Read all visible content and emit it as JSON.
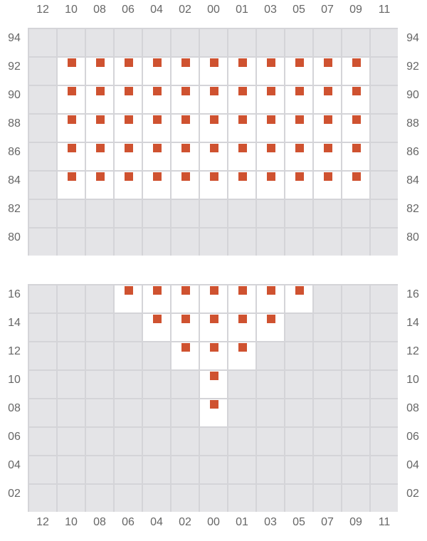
{
  "columns": [
    "12",
    "10",
    "08",
    "06",
    "04",
    "02",
    "00",
    "01",
    "03",
    "05",
    "07",
    "09",
    "11"
  ],
  "colors": {
    "cell": "#e4e4e7",
    "active": "#ffffff",
    "mark": "#cf5230",
    "grid": "#d4d4d8"
  },
  "sections": [
    {
      "rows": [
        "94",
        "92",
        "90",
        "88",
        "86",
        "84",
        "82",
        "80"
      ],
      "marked": {
        "92": [
          "10",
          "08",
          "06",
          "04",
          "02",
          "00",
          "01",
          "03",
          "05",
          "07",
          "09"
        ],
        "90": [
          "10",
          "08",
          "06",
          "04",
          "02",
          "00",
          "01",
          "03",
          "05",
          "07",
          "09"
        ],
        "88": [
          "10",
          "08",
          "06",
          "04",
          "02",
          "00",
          "01",
          "03",
          "05",
          "07",
          "09"
        ],
        "86": [
          "10",
          "08",
          "06",
          "04",
          "02",
          "00",
          "01",
          "03",
          "05",
          "07",
          "09"
        ],
        "84": [
          "10",
          "08",
          "06",
          "04",
          "02",
          "00",
          "01",
          "03",
          "05",
          "07",
          "09"
        ]
      }
    },
    {
      "rows": [
        "16",
        "14",
        "12",
        "10",
        "08",
        "06",
        "04",
        "02"
      ],
      "marked": {
        "16": [
          "06",
          "04",
          "02",
          "00",
          "01",
          "03",
          "05"
        ],
        "14": [
          "04",
          "02",
          "00",
          "01",
          "03"
        ],
        "12": [
          "02",
          "00",
          "01"
        ],
        "10": [
          "00"
        ],
        "08": [
          "00"
        ]
      }
    }
  ]
}
